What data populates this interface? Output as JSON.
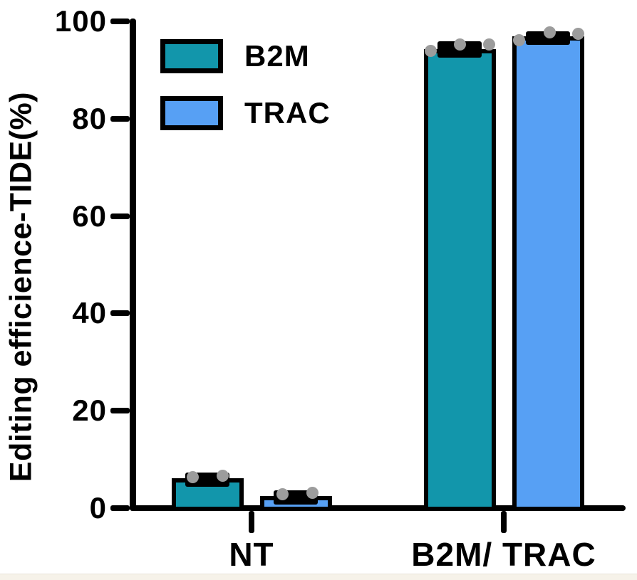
{
  "figure": {
    "background": "#ffffff",
    "bottom_edge_color": "#f6f2e9"
  },
  "chart_data": {
    "type": "bar",
    "title": "",
    "xlabel": "",
    "ylabel": "Editing efficience-TIDE(%)",
    "ylim": [
      0,
      100
    ],
    "yticks": [
      0,
      20,
      40,
      60,
      80,
      100
    ],
    "grid": false,
    "categories": [
      "NT",
      "B2M/ TRAC"
    ],
    "legend": {
      "position": "top-left",
      "entries": [
        {
          "label": "B2M",
          "color": "#1296AB"
        },
        {
          "label": "TRAC",
          "color": "#57A0F4"
        }
      ]
    },
    "series": [
      {
        "name": "B2M",
        "color": "#1296AB",
        "values": [
          6.1,
          94.3
        ],
        "sem": [
          1.2,
          1.6
        ],
        "points": [
          [
            {
              "dx": -21,
              "v": 6.3
            },
            {
              "dx": 21,
              "v": 6.7
            }
          ],
          [
            {
              "dx": -41,
              "v": 93.9
            },
            {
              "dx": 0,
              "v": 95.2
            },
            {
              "dx": 41,
              "v": 95.2
            }
          ]
        ]
      },
      {
        "name": "TRAC",
        "color": "#57A0F4",
        "values": [
          2.5,
          96.9
        ],
        "sem": [
          1.2,
          1.1
        ],
        "points": [
          [
            {
              "dx": -19,
              "v": 2.8
            },
            {
              "dx": 23,
              "v": 3.1
            }
          ],
          [
            {
              "dx": -41,
              "v": 96.1
            },
            {
              "dx": 2,
              "v": 97.8
            },
            {
              "dx": 42,
              "v": 97.5
            }
          ]
        ]
      }
    ],
    "point_color": "#9c9c9c",
    "bar_border_color": "#000000",
    "axis_color": "#000000"
  }
}
